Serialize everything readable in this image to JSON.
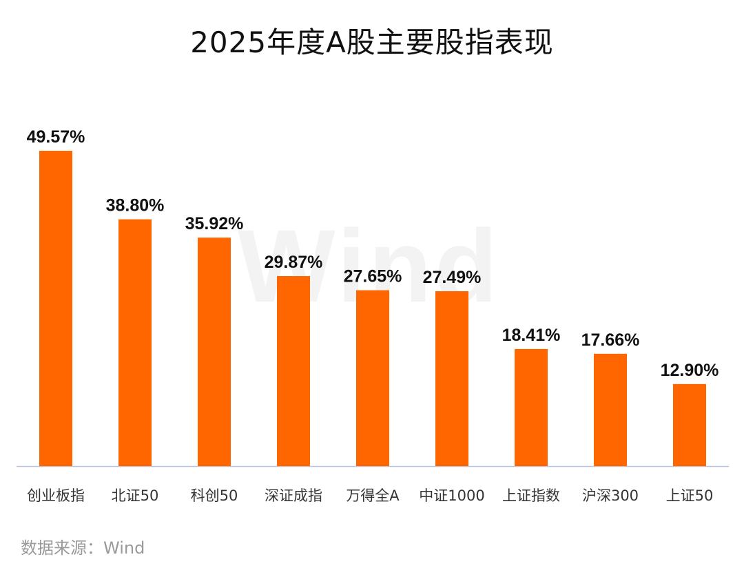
{
  "chart_data": {
    "type": "bar",
    "title": "2025年度A股主要股指表现",
    "categories": [
      "创业板指",
      "北证50",
      "科创50",
      "深证成指",
      "万得全A",
      "中证1000",
      "上证指数",
      "沪深300",
      "上证50"
    ],
    "values": [
      49.57,
      38.8,
      35.92,
      29.87,
      27.65,
      27.49,
      18.41,
      17.66,
      12.9
    ],
    "value_labels": [
      "49.57%",
      "38.80%",
      "35.92%",
      "29.87%",
      "27.65%",
      "27.49%",
      "18.41%",
      "17.66%",
      "12.90%"
    ],
    "ylim": [
      0,
      50
    ],
    "xlabel": "",
    "ylabel": "",
    "grid": false,
    "legend": "none",
    "bar_color": "#ff6600",
    "axis_color": "#b8c4e6"
  },
  "watermark": "Wind",
  "source_note": "数据来源：Wind"
}
